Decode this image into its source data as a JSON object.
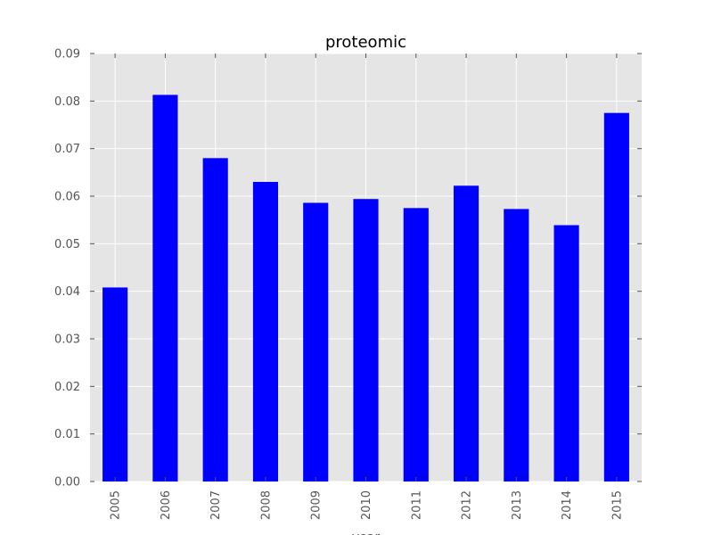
{
  "chart_data": {
    "type": "bar",
    "title": "proteomic",
    "xlabel": "year",
    "ylabel": "",
    "categories": [
      "2005",
      "2006",
      "2007",
      "2008",
      "2009",
      "2010",
      "2011",
      "2012",
      "2013",
      "2014",
      "2015"
    ],
    "values": [
      0.0408,
      0.0813,
      0.068,
      0.063,
      0.0586,
      0.0594,
      0.0575,
      0.0622,
      0.0573,
      0.0539,
      0.0775
    ],
    "ylim": [
      0,
      0.09
    ],
    "yticks": [
      "0.00",
      "0.01",
      "0.02",
      "0.03",
      "0.04",
      "0.05",
      "0.06",
      "0.07",
      "0.08",
      "0.09"
    ],
    "grid": true,
    "legend": "none",
    "colors": {
      "bar": "#0000ff",
      "plot_background": "#e5e5e5",
      "grid": "#ffffff",
      "text": "#555555"
    }
  }
}
